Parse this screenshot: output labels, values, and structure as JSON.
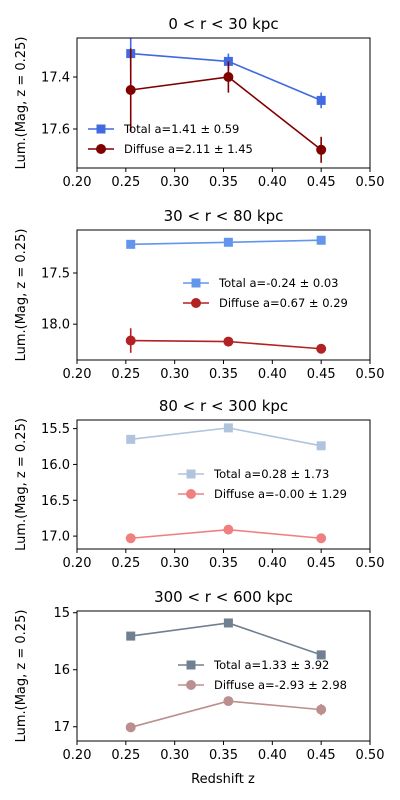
{
  "figure": {
    "xlabel": "Redshift z",
    "ylabel": "Lum.(Mag, z = 0.25)"
  },
  "chart_data": [
    {
      "type": "line",
      "title": "0 < r < 30 kpc",
      "x_ticks": [
        0.2,
        0.25,
        0.3,
        0.35,
        0.4,
        0.45,
        0.5
      ],
      "y_ticks": [
        17.4,
        17.6
      ],
      "y_tick_labels": [
        "17.4",
        "17.6"
      ],
      "xlim": [
        0.2,
        0.5
      ],
      "ylim": [
        17.75,
        17.25
      ],
      "y_inverted": true,
      "legend_position": "lower-left",
      "series": [
        {
          "name": "Total",
          "fit_label": "a=1.41 ± 0.59",
          "color": "#4169e1",
          "marker": "square",
          "x": [
            0.255,
            0.355,
            0.45
          ],
          "y": [
            17.31,
            17.34,
            17.49
          ],
          "yerr": [
            0.06,
            0.03,
            0.03
          ]
        },
        {
          "name": "Diffuse",
          "fit_label": "a=2.11 ± 1.45",
          "color": "#800000",
          "marker": "circle",
          "x": [
            0.255,
            0.355,
            0.45
          ],
          "y": [
            17.45,
            17.4,
            17.68
          ],
          "yerr": [
            0.16,
            0.06,
            0.05
          ]
        }
      ]
    },
    {
      "type": "line",
      "title": "30 < r < 80 kpc",
      "x_ticks": [
        0.2,
        0.25,
        0.3,
        0.35,
        0.4,
        0.45,
        0.5
      ],
      "y_ticks": [
        17.5,
        18.0
      ],
      "y_tick_labels": [
        "17.5",
        "18.0"
      ],
      "xlim": [
        0.2,
        0.5
      ],
      "ylim": [
        18.35,
        17.08
      ],
      "y_inverted": true,
      "legend_position": "center-right",
      "series": [
        {
          "name": "Total",
          "fit_label": "a=-0.24 ± 0.03",
          "color": "#6495ed",
          "marker": "square",
          "x": [
            0.255,
            0.355,
            0.45
          ],
          "y": [
            17.22,
            17.2,
            17.18
          ],
          "yerr": [
            0.04,
            0.03,
            0.03
          ]
        },
        {
          "name": "Diffuse",
          "fit_label": "a=0.67 ± 0.29",
          "color": "#b22222",
          "marker": "circle",
          "x": [
            0.255,
            0.355,
            0.45
          ],
          "y": [
            18.16,
            18.17,
            18.24
          ],
          "yerr": [
            0.12,
            0.04,
            0.04
          ]
        }
      ]
    },
    {
      "type": "line",
      "title": "80 < r < 300 kpc",
      "x_ticks": [
        0.2,
        0.25,
        0.3,
        0.35,
        0.4,
        0.45,
        0.5
      ],
      "y_ticks": [
        15.5,
        16.0,
        16.5,
        17.0
      ],
      "y_tick_labels": [
        "15.5",
        "16.0",
        "16.5",
        "17.0"
      ],
      "xlim": [
        0.2,
        0.5
      ],
      "ylim": [
        17.18,
        15.38
      ],
      "y_inverted": true,
      "legend_position": "center-right",
      "series": [
        {
          "name": "Total",
          "fit_label": "a=0.28 ± 1.73",
          "color": "#b0c4de",
          "marker": "square",
          "x": [
            0.255,
            0.355,
            0.45
          ],
          "y": [
            15.65,
            15.49,
            15.74
          ],
          "yerr": [
            0.02,
            0.02,
            0.02
          ]
        },
        {
          "name": "Diffuse",
          "fit_label": "a=-0.00 ± 1.29",
          "color": "#f08080",
          "marker": "circle",
          "x": [
            0.255,
            0.355,
            0.45
          ],
          "y": [
            17.03,
            16.91,
            17.03
          ],
          "yerr": [
            0.02,
            0.02,
            0.02
          ]
        }
      ]
    },
    {
      "type": "line",
      "title": "300 < r < 600 kpc",
      "x_ticks": [
        0.2,
        0.25,
        0.3,
        0.35,
        0.4,
        0.45,
        0.5
      ],
      "y_ticks": [
        15,
        16,
        17
      ],
      "y_tick_labels": [
        "15",
        "16",
        "17"
      ],
      "xlim": [
        0.2,
        0.5
      ],
      "ylim": [
        17.25,
        14.97
      ],
      "y_inverted": true,
      "legend_position": "center-right",
      "series": [
        {
          "name": "Total",
          "fit_label": "a=1.33 ± 3.92",
          "color": "#708090",
          "marker": "square",
          "x": [
            0.255,
            0.355,
            0.45
          ],
          "y": [
            15.41,
            15.18,
            15.74
          ],
          "yerr": [
            0.04,
            0.04,
            0.08
          ]
        },
        {
          "name": "Diffuse",
          "fit_label": "a=-2.93 ± 2.98",
          "color": "#bc8f8f",
          "marker": "circle",
          "x": [
            0.255,
            0.355,
            0.45
          ],
          "y": [
            17.01,
            16.55,
            16.7
          ],
          "yerr": [
            0.06,
            0.04,
            0.1
          ]
        }
      ]
    }
  ]
}
